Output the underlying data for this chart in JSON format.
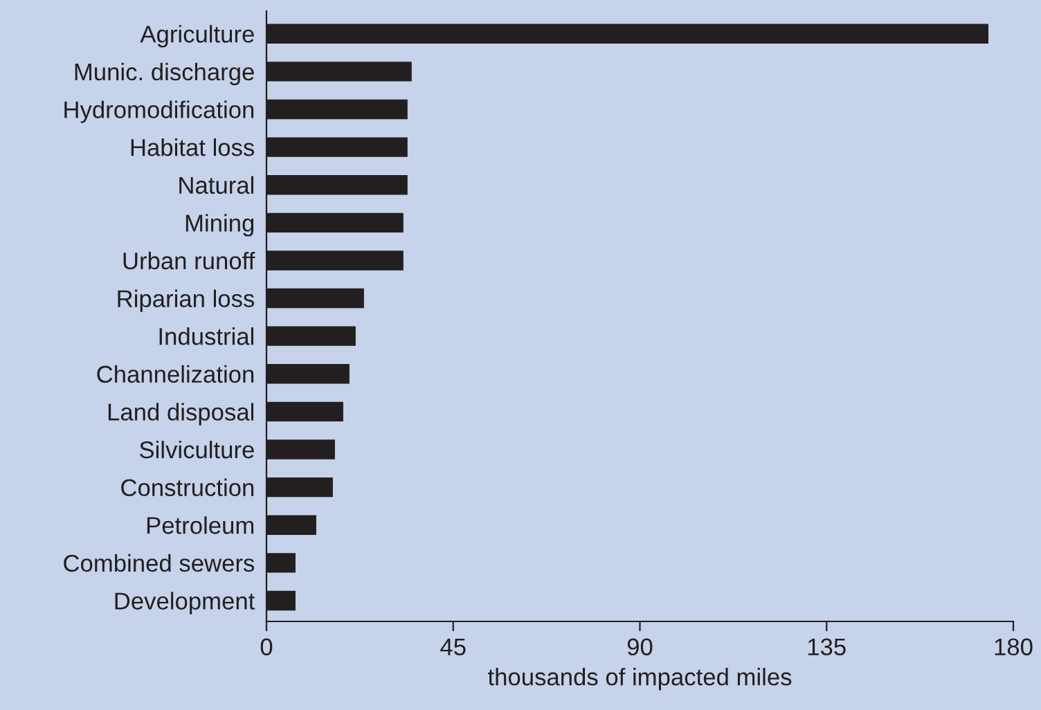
{
  "chart_data": {
    "type": "bar",
    "orientation": "horizontal",
    "xlabel": "thousands of impacted miles",
    "categories": [
      "Agriculture",
      "Munic. discharge",
      "Hydromodification",
      "Habitat loss",
      "Natural",
      "Mining",
      "Urban runoff",
      "Riparian loss",
      "Industrial",
      "Channelization",
      "Land disposal",
      "Silviculture",
      "Construction",
      "Petroleum",
      "Combined sewers",
      "Development"
    ],
    "values": [
      174,
      35,
      34,
      34,
      34,
      33,
      33,
      23.5,
      21.5,
      20,
      18.5,
      16.5,
      16,
      12,
      7,
      7
    ],
    "color": "#231f20",
    "xlim": [
      0,
      180
    ],
    "xticks": [
      0,
      45,
      90,
      135,
      180
    ],
    "grid": false,
    "legend": false
  }
}
